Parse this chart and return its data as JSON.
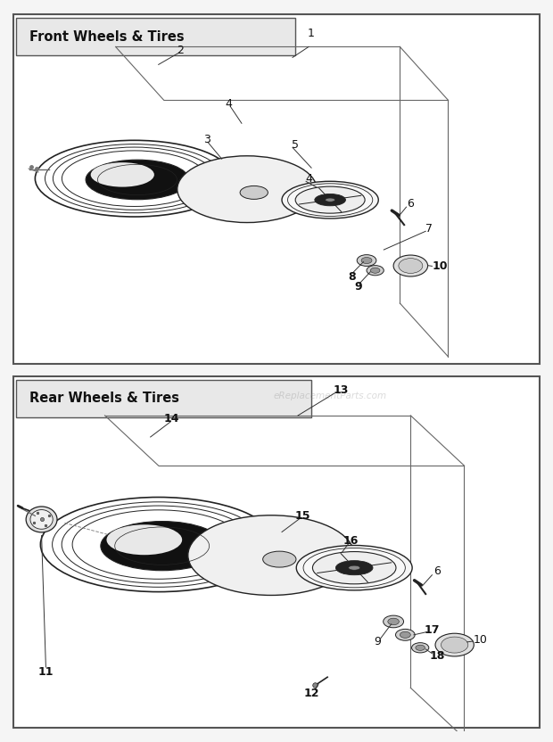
{
  "title_top": "Front Wheels & Tires",
  "title_bottom": "Rear Wheels & Tires",
  "watermark": "eReplacementParts.com",
  "bg_color": "#f5f5f5",
  "panel_bg": "#ffffff",
  "lc": "#222222",
  "lc_light": "#888888"
}
